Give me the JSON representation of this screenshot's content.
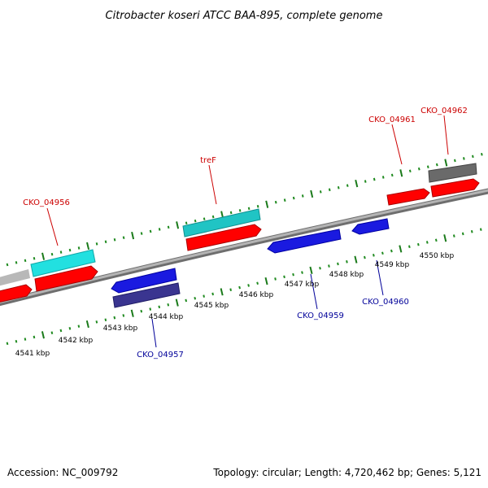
{
  "title": "Citrobacter koseri ATCC BAA-895, complete genome",
  "accession": "Accession: NC_009792",
  "topology": "Topology: circular; Length: 4,720,462 bp; Genes: 5,121",
  "colors": {
    "backbone": "#8c8c8c",
    "tick_minor": "#1f8a1f",
    "tick_major": "#1a7a1a",
    "red": "#ff0000",
    "cyan": "#22e0e0",
    "teal": "#20c4c4",
    "blue": "#1a1ae0",
    "navy": "#3a3590",
    "gray_light": "#b8b8b8",
    "gray_dark": "#5a5a5a",
    "label_red": "#cc0000",
    "label_blue": "#000099"
  },
  "ticks": [
    {
      "label": "4541 kbp"
    },
    {
      "label": "4542 kbp"
    },
    {
      "label": "4543 kbp"
    },
    {
      "label": "4544 kbp"
    },
    {
      "label": "4545 kbp"
    },
    {
      "label": "4546 kbp"
    },
    {
      "label": "4547 kbp"
    },
    {
      "label": "4548 kbp"
    },
    {
      "label": "4549 kbp"
    },
    {
      "label": "4550 kbp"
    }
  ],
  "gene_labels": [
    {
      "text": "CKO_04956",
      "color": "label_red"
    },
    {
      "text": "treF",
      "color": "label_red"
    },
    {
      "text": "CKO_04961",
      "color": "label_red"
    },
    {
      "text": "CKO_04962",
      "color": "label_red"
    },
    {
      "text": "CKO_04957",
      "color": "label_blue"
    },
    {
      "text": "CKO_04959",
      "color": "label_blue"
    },
    {
      "text": "CKO_04960",
      "color": "label_blue"
    }
  ]
}
